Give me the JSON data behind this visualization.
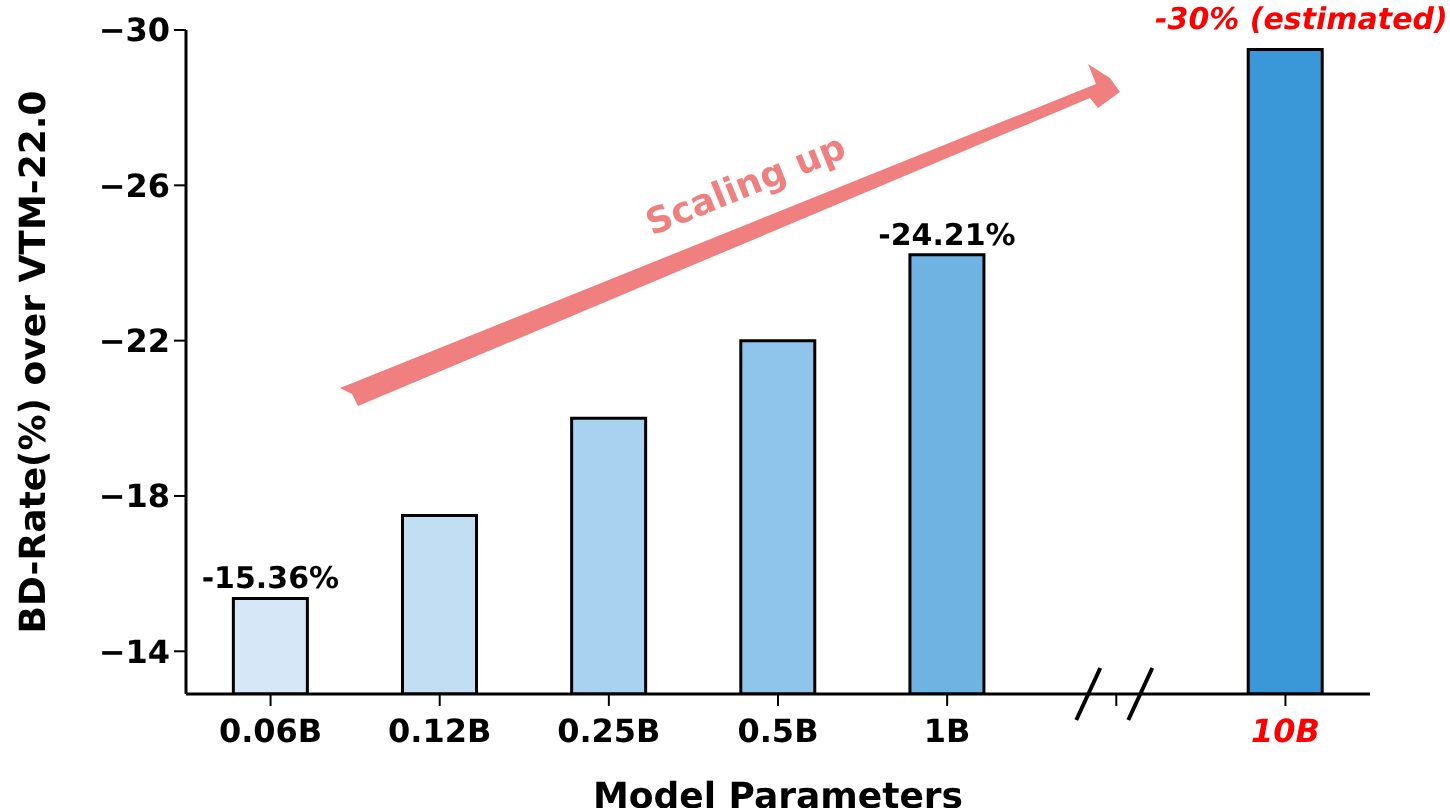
{
  "chart_data": {
    "type": "bar",
    "xlabel": "Model Parameters",
    "ylabel": "BD-Rate(%) over VTM-22.0",
    "categories": [
      "0.06B",
      "0.12B",
      "0.25B",
      "0.5B",
      "1B",
      null,
      "10B"
    ],
    "values": [
      -15.36,
      -17.5,
      -20.0,
      -22.0,
      -24.21,
      null,
      -29.5
    ],
    "colors": [
      "#d6e8f7",
      "#c2def3",
      "#a9d1f0",
      "#8fc4eb",
      "#6fb3e3",
      "#3a97d8",
      "#3a97d8"
    ],
    "value_labels": [
      "-15.36%",
      null,
      null,
      null,
      "-24.21%",
      null,
      null
    ],
    "ylim": [
      -12.9,
      -30
    ],
    "yticks": [
      {
        "value": -30,
        "label": "−30"
      },
      {
        "value": -26,
        "label": "−26"
      },
      {
        "value": -22,
        "label": "−22"
      },
      {
        "value": -18,
        "label": "−18"
      },
      {
        "value": -14,
        "label": "−14"
      }
    ],
    "annotations": [
      "Scaling up",
      {
        "text": "-30% (estimated)",
        "x": "10B",
        "y": -29.5
      }
    ],
    "grid": false,
    "legend": false
  }
}
